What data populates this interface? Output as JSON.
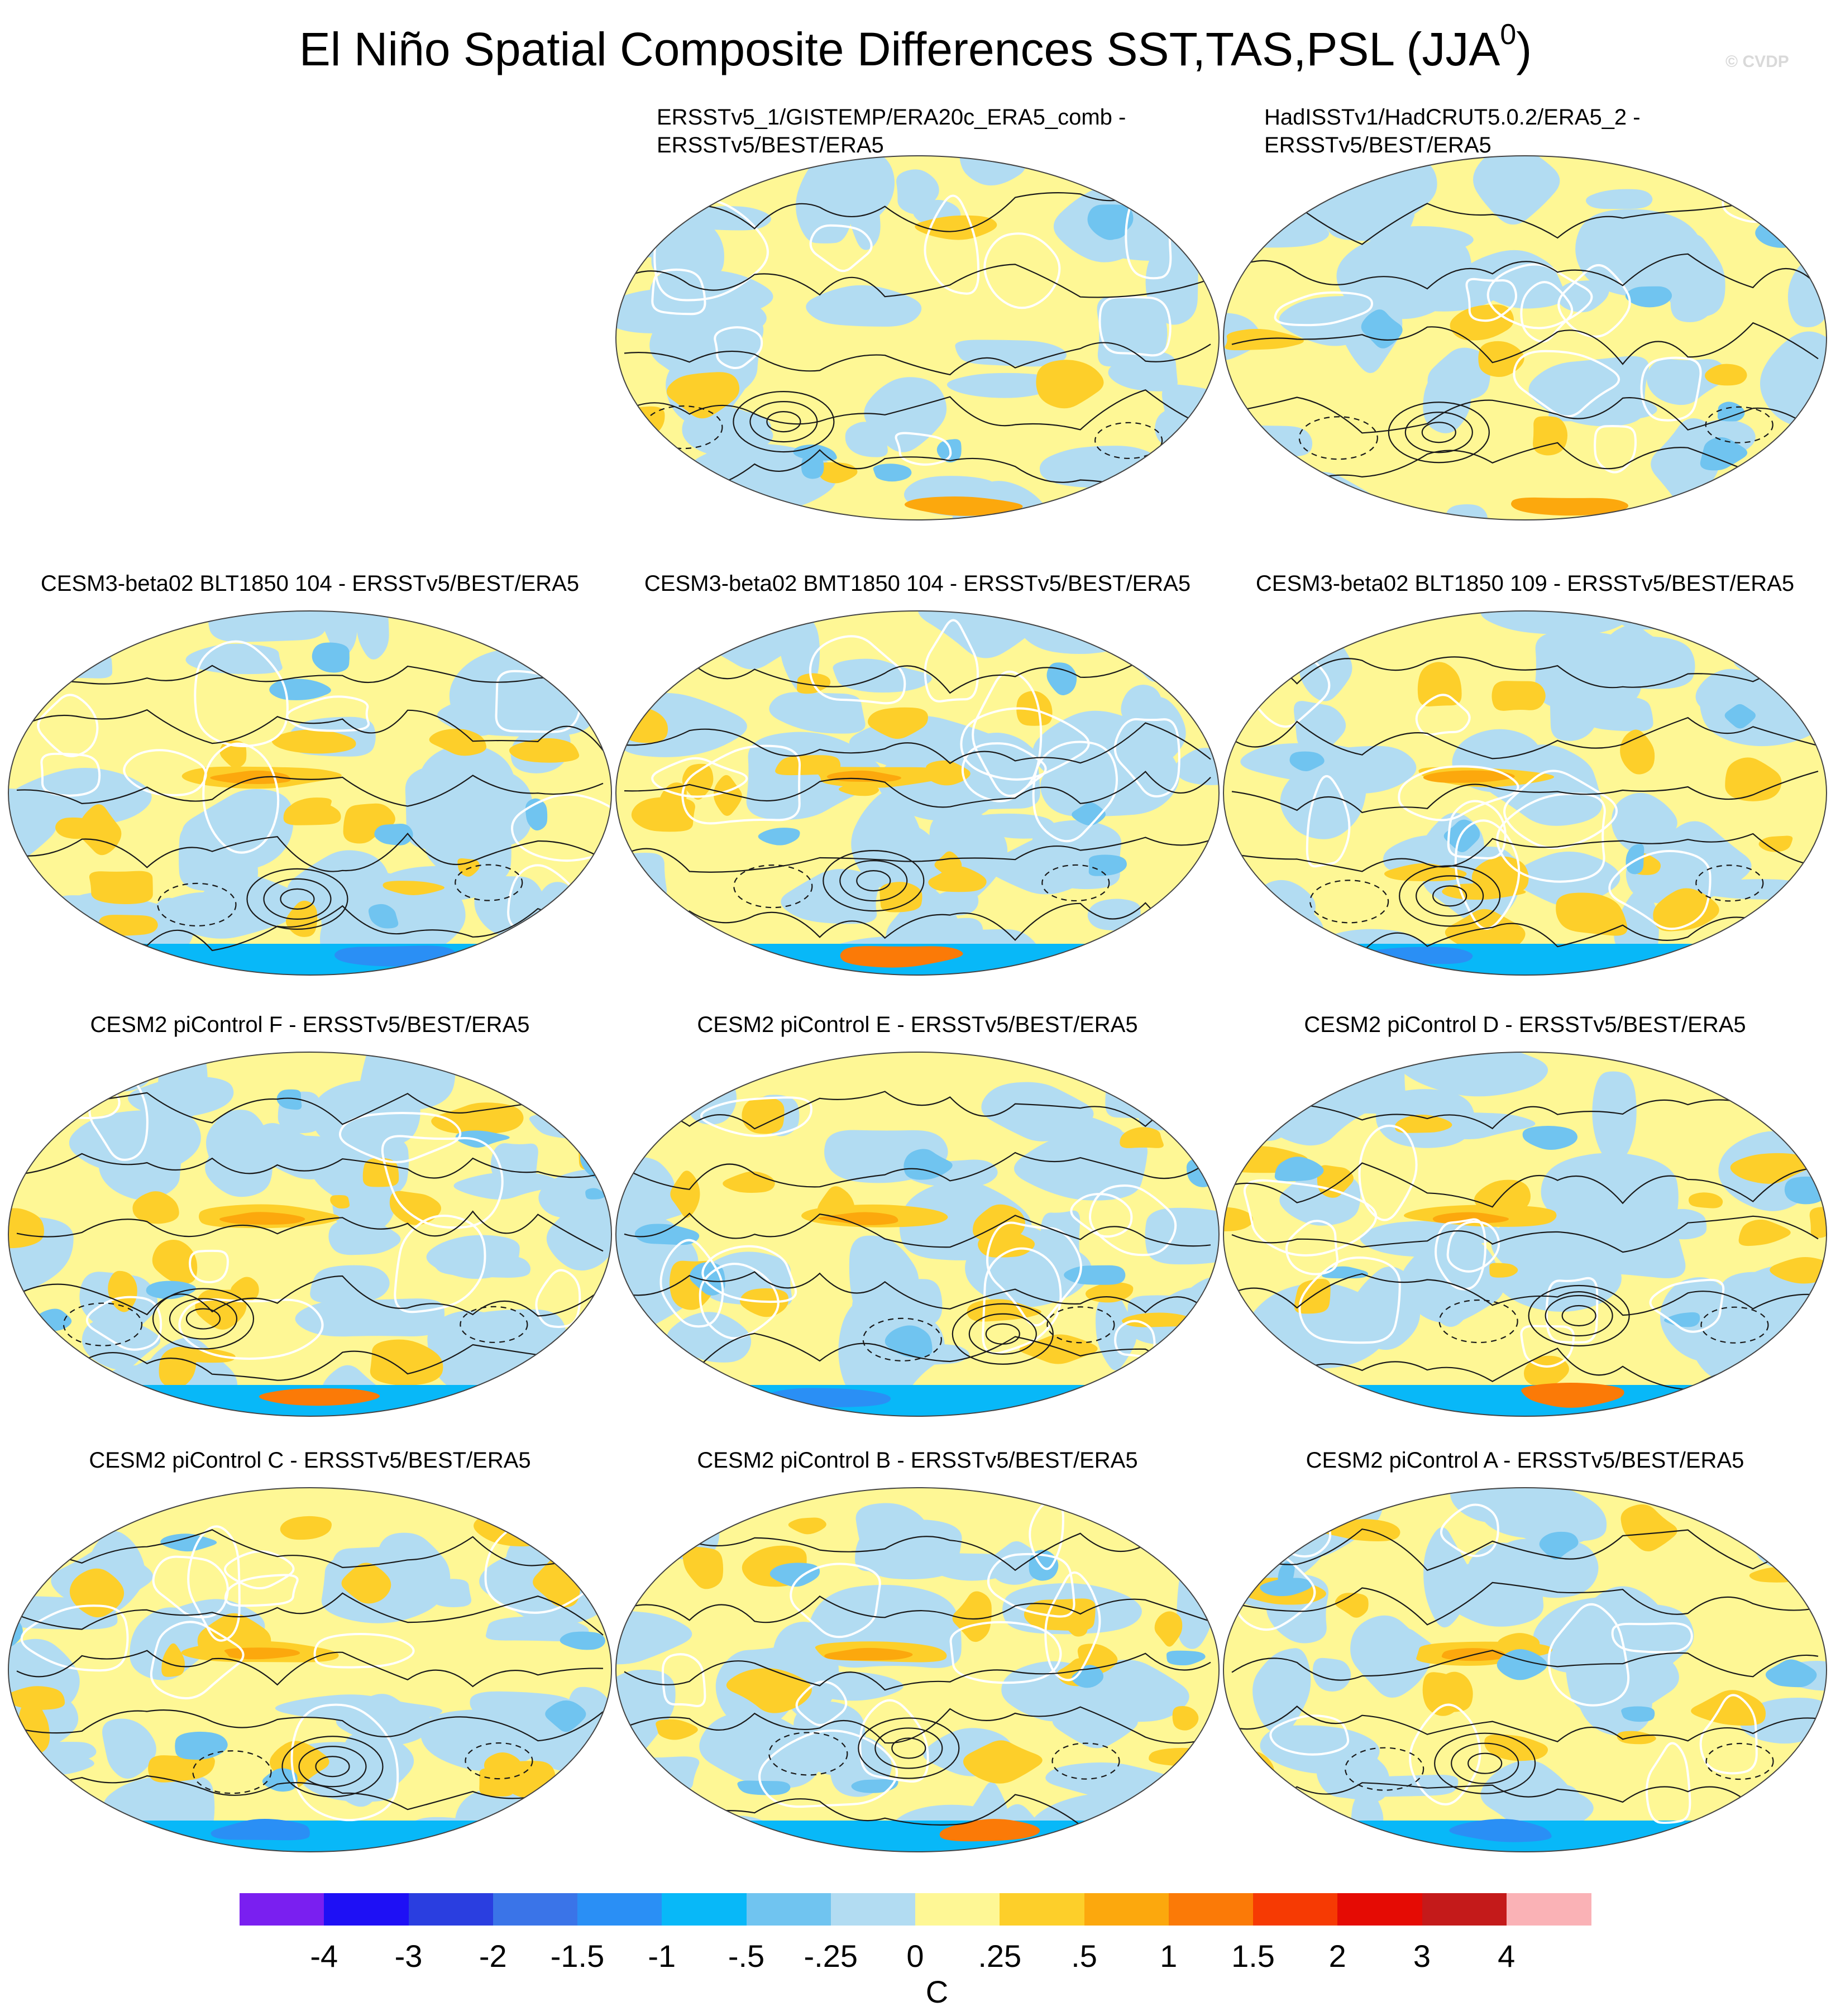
{
  "title": {
    "main": "El Niño Spatial Composite Differences SST,TAS,PSL (JJA",
    "sup": "0",
    "close": ")"
  },
  "copyright": "© CVDP",
  "panels": [
    {
      "id": "p1",
      "row": 0,
      "col": 1,
      "title_lines": [
        "ERSSTv5_1/GISTEMP/ERA20c_ERA5_comb -",
        "ERSSTv5/BEST/ERA5"
      ],
      "align": "left"
    },
    {
      "id": "p2",
      "row": 0,
      "col": 2,
      "title_lines": [
        "HadISSTv1/HadCRUT5.0.2/ERA5_2 -",
        "ERSSTv5/BEST/ERA5"
      ],
      "align": "left"
    },
    {
      "id": "p3",
      "row": 1,
      "col": 0,
      "title_lines": [
        "CESM3-beta02 BLT1850 104 - ERSSTv5/BEST/ERA5"
      ],
      "align": "center"
    },
    {
      "id": "p4",
      "row": 1,
      "col": 1,
      "title_lines": [
        "CESM3-beta02 BMT1850 104 - ERSSTv5/BEST/ERA5"
      ],
      "align": "center"
    },
    {
      "id": "p5",
      "row": 1,
      "col": 2,
      "title_lines": [
        "CESM3-beta02 BLT1850 109 - ERSSTv5/BEST/ERA5"
      ],
      "align": "center"
    },
    {
      "id": "p6",
      "row": 2,
      "col": 0,
      "title_lines": [
        "CESM2 piControl F - ERSSTv5/BEST/ERA5"
      ],
      "align": "center"
    },
    {
      "id": "p7",
      "row": 2,
      "col": 1,
      "title_lines": [
        "CESM2 piControl E - ERSSTv5/BEST/ERA5"
      ],
      "align": "center"
    },
    {
      "id": "p8",
      "row": 2,
      "col": 2,
      "title_lines": [
        "CESM2 piControl D - ERSSTv5/BEST/ERA5"
      ],
      "align": "center"
    },
    {
      "id": "p9",
      "row": 3,
      "col": 0,
      "title_lines": [
        "CESM2 piControl C - ERSSTv5/BEST/ERA5"
      ],
      "align": "center"
    },
    {
      "id": "p10",
      "row": 3,
      "col": 1,
      "title_lines": [
        "CESM2 piControl B - ERSSTv5/BEST/ERA5"
      ],
      "align": "center"
    },
    {
      "id": "p11",
      "row": 3,
      "col": 2,
      "title_lines": [
        "CESM2 piControl A - ERSSTv5/BEST/ERA5"
      ],
      "align": "center"
    }
  ],
  "colorbar": {
    "colors": [
      "#7a1ff0",
      "#1e10f5",
      "#2a3ee0",
      "#3a74e8",
      "#2a8ff5",
      "#08b8f8",
      "#70c4f0",
      "#b2dcf2",
      "#fef795",
      "#fdcf2a",
      "#fca80d",
      "#fb7a07",
      "#f63a03",
      "#e50b04",
      "#c41a1a",
      "#fab2b6"
    ],
    "labels": [
      "-4",
      "-3",
      "-2",
      "-1.5",
      "-1",
      "-.5",
      "-.25",
      "0",
      ".25",
      ".5",
      "1",
      "1.5",
      "2",
      "3",
      "4"
    ],
    "units": "C"
  }
}
